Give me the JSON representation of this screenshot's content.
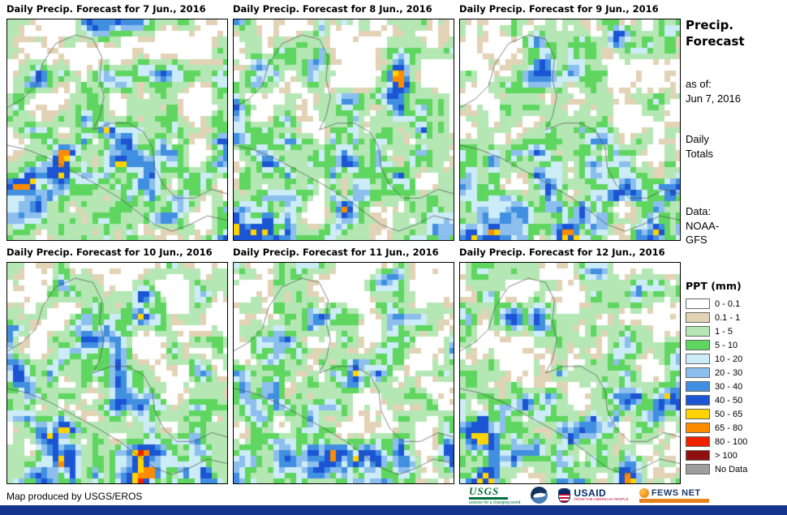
{
  "panels": [
    {
      "title": "Daily Precip. Forecast for 7 Jun., 2016"
    },
    {
      "title": "Daily Precip. Forecast for 8 Jun., 2016"
    },
    {
      "title": "Daily Precip. Forecast for 9 Jun., 2016"
    },
    {
      "title": "Daily Precip. Forecast for 10 Jun., 2016"
    },
    {
      "title": "Daily Precip. Forecast for 11 Jun., 2016"
    },
    {
      "title": "Daily Precip. Forecast for 12 Jun., 2016"
    }
  ],
  "sidebar": {
    "title_line1": "Precip.",
    "title_line2": "Forecast",
    "as_of_label": "as of:",
    "as_of_date": "Jun 7, 2016",
    "totals_line1": "Daily",
    "totals_line2": "Totals",
    "data_label": "Data:",
    "data_line1": "NOAA-",
    "data_line2": "GFS"
  },
  "legend": {
    "title": "PPT (mm)",
    "items": [
      {
        "label": "0 - 0.1",
        "color": "#ffffff"
      },
      {
        "label": "0.1 - 1",
        "color": "#e2d3b6"
      },
      {
        "label": "1 - 5",
        "color": "#b5e7b5"
      },
      {
        "label": "5 - 10",
        "color": "#5fd65f"
      },
      {
        "label": "10 - 20",
        "color": "#ccecf7"
      },
      {
        "label": "20 - 30",
        "color": "#8cbfee"
      },
      {
        "label": "30 - 40",
        "color": "#418fe0"
      },
      {
        "label": "40 - 50",
        "color": "#1b55d4"
      },
      {
        "label": "50 - 65",
        "color": "#ffd400"
      },
      {
        "label": "65 - 80",
        "color": "#ff8c00"
      },
      {
        "label": "80 - 100",
        "color": "#ee2200"
      },
      {
        "label": "> 100",
        "color": "#8e1111"
      },
      {
        "label": "No Data",
        "color": "#9e9e9e"
      }
    ]
  },
  "footer": {
    "credit": "Map produced by USGS/EROS",
    "logos": [
      {
        "name": "usgs",
        "text": "USGS",
        "subtext": "science for a changing world"
      },
      {
        "name": "noaa"
      },
      {
        "name": "usaid",
        "text": "USAID",
        "subtext": "FROM THE AMERICAN PEOPLE"
      },
      {
        "name": "fewsnet",
        "text": "FEWS NET"
      }
    ]
  }
}
